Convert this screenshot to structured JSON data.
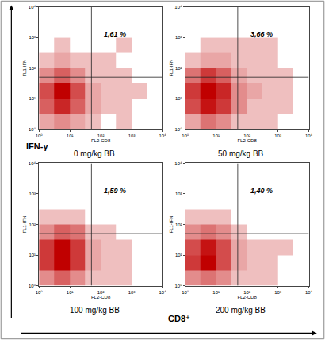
{
  "figure": {
    "x_label": "CD8⁺",
    "y_label": "IFN-γ"
  },
  "chart_data": [
    {
      "type": "heatmap",
      "title": "0 mg/kg BB",
      "x_label": "FL2-CD8",
      "y_label": "FL1-IFN",
      "log": true,
      "color": "#c00000",
      "xlim": [
        1,
        10000
      ],
      "ylim": [
        1,
        10000
      ],
      "xticks": [
        {
          "value": 1,
          "label": "10⁰"
        },
        {
          "value": 10,
          "label": "10¹"
        },
        {
          "value": 100,
          "label": "10²"
        },
        {
          "value": 1000,
          "label": "10³"
        },
        {
          "value": 10000,
          "label": "10⁴"
        }
      ],
      "yticks": [
        {
          "value": 1,
          "label": "10⁰"
        },
        {
          "value": 10,
          "label": "10¹"
        },
        {
          "value": 100,
          "label": "10²"
        },
        {
          "value": 1000,
          "label": "10³"
        },
        {
          "value": 10000,
          "label": "10⁴"
        }
      ],
      "x_bins": [
        1,
        3.16,
        10,
        31.6,
        100,
        316,
        1000,
        3160,
        10000
      ],
      "y_bins": [
        1,
        3.16,
        10,
        31.6,
        100,
        316,
        1000,
        3160,
        10000
      ],
      "cells": [
        [
          2,
          3,
          2,
          1,
          0,
          1,
          0,
          0
        ],
        [
          5,
          8,
          5,
          2,
          1,
          1,
          0,
          0
        ],
        [
          6,
          10,
          6,
          2,
          1,
          1,
          1,
          0
        ],
        [
          3,
          5,
          3,
          1,
          1,
          1,
          0,
          0
        ],
        [
          1,
          2,
          1,
          1,
          1,
          0,
          0,
          0
        ],
        [
          0,
          1,
          0,
          0,
          0,
          1,
          0,
          0
        ],
        [
          0,
          0,
          0,
          0,
          0,
          0,
          0,
          0
        ],
        [
          0,
          0,
          0,
          0,
          0,
          0,
          0,
          0
        ]
      ],
      "gate": {
        "x": 50,
        "y": 50
      },
      "quadrant_percent": {
        "value": 1.61,
        "label": "1,61 %"
      }
    },
    {
      "type": "heatmap",
      "title": "50 mg/kg BB",
      "x_label": "FL2-CD8",
      "y_label": "FL1-IFN",
      "log": true,
      "color": "#c00000",
      "xlim": [
        1,
        10000
      ],
      "ylim": [
        1,
        10000
      ],
      "xticks": [
        {
          "value": 1,
          "label": "10⁰"
        },
        {
          "value": 10,
          "label": "10¹"
        },
        {
          "value": 100,
          "label": "10²"
        },
        {
          "value": 1000,
          "label": "10³"
        },
        {
          "value": 10000,
          "label": "10⁴"
        }
      ],
      "yticks": [
        {
          "value": 1,
          "label": "10⁰"
        },
        {
          "value": 10,
          "label": "10¹"
        },
        {
          "value": 100,
          "label": "10²"
        },
        {
          "value": 1000,
          "label": "10³"
        },
        {
          "value": 10000,
          "label": "10⁴"
        }
      ],
      "x_bins": [
        1,
        3.16,
        10,
        31.6,
        100,
        316,
        1000,
        3160,
        10000
      ],
      "y_bins": [
        1,
        3.16,
        10,
        31.6,
        100,
        316,
        1000,
        3160,
        10000
      ],
      "cells": [
        [
          2,
          4,
          3,
          1,
          1,
          1,
          0,
          0
        ],
        [
          6,
          9,
          7,
          3,
          1,
          1,
          1,
          0
        ],
        [
          7,
          10,
          8,
          3,
          2,
          1,
          1,
          0
        ],
        [
          4,
          7,
          5,
          2,
          1,
          1,
          1,
          0
        ],
        [
          1,
          2,
          2,
          1,
          1,
          1,
          0,
          0
        ],
        [
          0,
          1,
          1,
          1,
          1,
          1,
          0,
          0
        ],
        [
          0,
          0,
          0,
          0,
          0,
          0,
          0,
          0
        ],
        [
          0,
          0,
          0,
          0,
          0,
          0,
          0,
          0
        ]
      ],
      "gate": {
        "x": 50,
        "y": 50
      },
      "quadrant_percent": {
        "value": 3.66,
        "label": "3,66 %"
      }
    },
    {
      "type": "heatmap",
      "title": "100 mg/kg BB",
      "x_label": "FL2-CD8",
      "y_label": "FL1-IFN",
      "log": true,
      "color": "#c00000",
      "xlim": [
        1,
        10000
      ],
      "ylim": [
        1,
        10000
      ],
      "xticks": [
        {
          "value": 1,
          "label": "10⁰"
        },
        {
          "value": 10,
          "label": "10¹"
        },
        {
          "value": 100,
          "label": "10²"
        },
        {
          "value": 1000,
          "label": "10³"
        },
        {
          "value": 10000,
          "label": "10⁴"
        }
      ],
      "yticks": [
        {
          "value": 1,
          "label": "10⁰"
        },
        {
          "value": 10,
          "label": "10¹"
        },
        {
          "value": 100,
          "label": "10²"
        },
        {
          "value": 1000,
          "label": "10³"
        },
        {
          "value": 10000,
          "label": "10⁴"
        }
      ],
      "x_bins": [
        1,
        3.16,
        10,
        31.6,
        100,
        316,
        1000,
        3160,
        10000
      ],
      "y_bins": [
        1,
        3.16,
        10,
        31.6,
        100,
        316,
        1000,
        3160,
        10000
      ],
      "cells": [
        [
          3,
          5,
          3,
          1,
          1,
          1,
          0,
          0
        ],
        [
          7,
          10,
          7,
          2,
          1,
          1,
          0,
          0
        ],
        [
          7,
          10,
          7,
          2,
          1,
          1,
          0,
          0
        ],
        [
          3,
          5,
          4,
          1,
          1,
          0,
          0,
          0
        ],
        [
          1,
          1,
          1,
          0,
          0,
          0,
          0,
          0
        ],
        [
          0,
          0,
          0,
          0,
          0,
          0,
          0,
          0
        ],
        [
          0,
          0,
          0,
          0,
          0,
          0,
          0,
          0
        ],
        [
          0,
          0,
          0,
          0,
          0,
          0,
          0,
          0
        ]
      ],
      "gate": {
        "x": 50,
        "y": 50
      },
      "quadrant_percent": {
        "value": 1.59,
        "label": "1,59 %"
      }
    },
    {
      "type": "heatmap",
      "title": "200 mg/kg BB",
      "x_label": "FL2-CD8",
      "y_label": "FL1-IFN",
      "log": true,
      "color": "#c00000",
      "xlim": [
        1,
        10000
      ],
      "ylim": [
        1,
        10000
      ],
      "xticks": [
        {
          "value": 1,
          "label": "10⁰"
        },
        {
          "value": 10,
          "label": "10¹"
        },
        {
          "value": 100,
          "label": "10²"
        },
        {
          "value": 1000,
          "label": "10³"
        },
        {
          "value": 10000,
          "label": "10⁴"
        }
      ],
      "yticks": [
        {
          "value": 1,
          "label": "10⁰"
        },
        {
          "value": 10,
          "label": "10¹"
        },
        {
          "value": 100,
          "label": "10²"
        },
        {
          "value": 1000,
          "label": "10³"
        },
        {
          "value": 10000,
          "label": "10⁴"
        }
      ],
      "x_bins": [
        1,
        3.16,
        10,
        31.6,
        100,
        316,
        1000,
        3160,
        10000
      ],
      "y_bins": [
        1,
        3.16,
        10,
        31.6,
        100,
        316,
        1000,
        3160,
        10000
      ],
      "cells": [
        [
          3,
          4,
          3,
          1,
          1,
          1,
          0,
          0
        ],
        [
          7,
          10,
          6,
          2,
          1,
          1,
          0,
          0
        ],
        [
          6,
          9,
          6,
          2,
          1,
          1,
          1,
          0
        ],
        [
          3,
          4,
          3,
          1,
          0,
          0,
          0,
          0
        ],
        [
          1,
          1,
          1,
          0,
          0,
          0,
          0,
          0
        ],
        [
          0,
          0,
          0,
          0,
          0,
          0,
          0,
          0
        ],
        [
          0,
          0,
          0,
          0,
          0,
          0,
          0,
          0
        ],
        [
          0,
          0,
          0,
          0,
          0,
          0,
          0,
          0
        ]
      ],
      "gate": {
        "x": 50,
        "y": 50
      },
      "quadrant_percent": {
        "value": 1.4,
        "label": "1,40 %"
      }
    }
  ]
}
